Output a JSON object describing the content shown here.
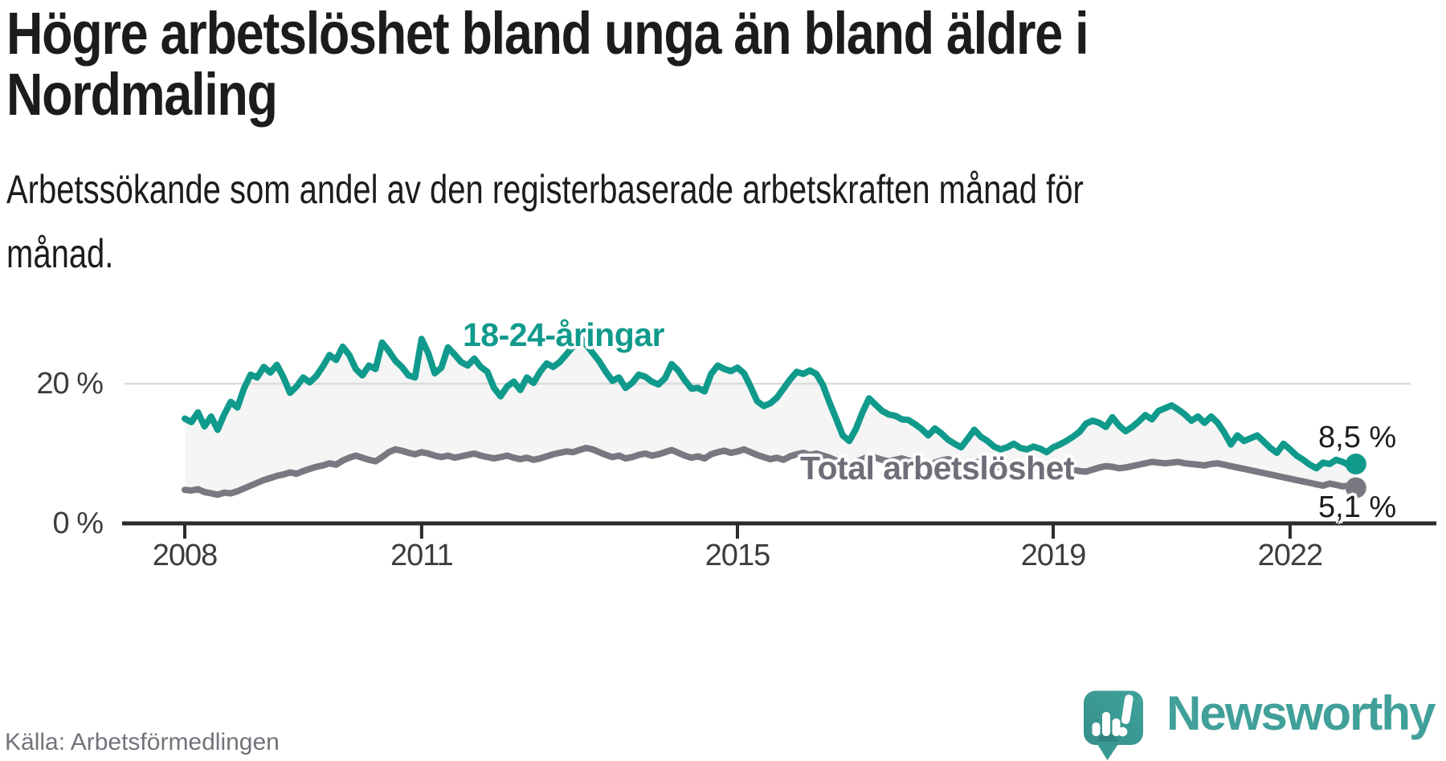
{
  "header": {
    "title_lines": [
      "Högre arbetslöshet bland unga än bland äldre i",
      "Nordmaling"
    ],
    "subtitle_lines": [
      "Arbetssökande som andel av den registerbaserade arbetskraften månad för",
      "månad."
    ]
  },
  "chart": {
    "y_axis": {
      "ticks": [
        {
          "label": "20 %",
          "value": 20
        },
        {
          "label": "0 %",
          "value": 0
        }
      ]
    },
    "x_axis": {
      "ticks": [
        {
          "label": "2008",
          "year": 2008
        },
        {
          "label": "2011",
          "year": 2011
        },
        {
          "label": "2015",
          "year": 2015
        },
        {
          "label": "2019",
          "year": 2019
        },
        {
          "label": "2022",
          "year": 2022
        }
      ]
    },
    "series_labels": {
      "young": "18-24-åringar",
      "total": "Total arbetslöshet"
    },
    "end_labels": {
      "young": "8,5 %",
      "total": "5,1 %"
    },
    "colors": {
      "young": "#109a8c",
      "total": "#787880",
      "area": "#f5f5f5",
      "grid": "#dcdcdc",
      "axis": "#2b2b2b"
    }
  },
  "chart_data": {
    "type": "line",
    "title": "Högre arbetslöshet bland unga än bland äldre i Nordmaling",
    "subtitle": "Arbetssökande som andel av den registerbaserade arbetskraften månad för månad.",
    "unit": "%",
    "frequency": "monthly",
    "x_start": "2008-01",
    "x_end": "2022-11",
    "ylim": [
      0,
      28
    ],
    "yticks": [
      0,
      20
    ],
    "xticks": [
      2008,
      2011,
      2015,
      2019,
      2022
    ],
    "grid": "horizontal-20-only",
    "legend": "inline-labels",
    "area_fill_between_series": true,
    "series": [
      {
        "name": "18-24-åringar",
        "color": "#109a8c",
        "end_label": "8,5 %",
        "last_value": 8.5,
        "values": [
          15.0,
          14.5,
          15.9,
          13.9,
          15.3,
          13.4,
          15.6,
          17.4,
          16.6,
          19.3,
          21.3,
          20.9,
          22.4,
          21.6,
          22.7,
          20.9,
          18.7,
          19.6,
          20.9,
          20.2,
          21.1,
          22.5,
          24.1,
          23.4,
          25.3,
          24.1,
          22.1,
          21.2,
          22.6,
          22.1,
          25.9,
          24.7,
          23.3,
          22.4,
          21.2,
          20.9,
          26.4,
          24.4,
          21.5,
          22.3,
          25.2,
          24.2,
          23.1,
          22.6,
          23.6,
          22.4,
          21.7,
          19.4,
          18.2,
          19.6,
          20.3,
          19.1,
          20.9,
          20.1,
          21.7,
          22.9,
          22.4,
          23.1,
          24.2,
          25.3,
          26.8,
          25.6,
          24.4,
          23.2,
          21.7,
          20.4,
          20.9,
          19.4,
          20.1,
          21.3,
          21.0,
          20.3,
          19.9,
          20.8,
          22.8,
          21.9,
          20.5,
          19.3,
          19.4,
          18.9,
          21.4,
          22.6,
          22.1,
          21.8,
          22.3,
          21.5,
          19.6,
          17.5,
          16.8,
          17.2,
          18.0,
          19.3,
          20.6,
          21.7,
          21.4,
          21.9,
          21.4,
          19.8,
          17.3,
          15.0,
          12.6,
          11.8,
          13.5,
          15.9,
          17.9,
          17.0,
          16.1,
          15.6,
          15.4,
          14.9,
          14.8,
          14.2,
          13.5,
          12.6,
          13.6,
          12.9,
          12.0,
          11.4,
          10.9,
          12.1,
          13.4,
          12.4,
          11.8,
          11.0,
          10.6,
          10.9,
          11.4,
          10.8,
          10.6,
          11.0,
          10.7,
          10.2,
          10.9,
          11.3,
          11.8,
          12.4,
          13.1,
          14.3,
          14.7,
          14.4,
          13.8,
          15.2,
          14.0,
          13.2,
          13.8,
          14.6,
          15.5,
          14.9,
          16.1,
          16.5,
          16.9,
          16.3,
          15.6,
          14.7,
          15.3,
          14.4,
          15.3,
          14.4,
          13.0,
          11.3,
          12.6,
          11.8,
          12.2,
          12.6,
          11.7,
          10.8,
          10.1,
          11.4,
          10.6,
          9.7,
          9.1,
          8.4,
          7.9,
          8.7,
          8.5,
          9.1,
          8.8,
          8.3,
          8.5
        ]
      },
      {
        "name": "Total arbetslöshet",
        "color": "#787880",
        "end_label": "5,1 %",
        "last_value": 5.1,
        "values": [
          4.8,
          4.7,
          4.9,
          4.5,
          4.3,
          4.1,
          4.4,
          4.3,
          4.6,
          5.0,
          5.4,
          5.8,
          6.2,
          6.5,
          6.8,
          7.0,
          7.3,
          7.1,
          7.5,
          7.8,
          8.1,
          8.3,
          8.6,
          8.4,
          9.0,
          9.4,
          9.7,
          9.4,
          9.1,
          8.9,
          9.5,
          10.2,
          10.6,
          10.4,
          10.1,
          9.9,
          10.2,
          10.0,
          9.7,
          9.5,
          9.7,
          9.4,
          9.6,
          9.8,
          10.0,
          9.7,
          9.5,
          9.3,
          9.5,
          9.7,
          9.4,
          9.2,
          9.4,
          9.1,
          9.3,
          9.6,
          9.9,
          10.1,
          10.3,
          10.2,
          10.5,
          10.8,
          10.6,
          10.2,
          9.8,
          9.5,
          9.7,
          9.3,
          9.5,
          9.8,
          10.0,
          9.7,
          9.9,
          10.2,
          10.5,
          10.1,
          9.7,
          9.4,
          9.6,
          9.3,
          9.9,
          10.2,
          10.4,
          10.1,
          10.3,
          10.6,
          10.2,
          9.8,
          9.5,
          9.2,
          9.4,
          9.1,
          9.6,
          9.9,
          10.1,
          9.8,
          10.0,
          9.7,
          9.4,
          9.0,
          8.7,
          8.4,
          8.8,
          9.2,
          9.6,
          9.4,
          9.1,
          8.9,
          9.1,
          9.3,
          9.0,
          8.8,
          8.6,
          8.3,
          8.7,
          9.0,
          9.2,
          8.9,
          8.7,
          8.5,
          8.7,
          8.9,
          8.6,
          8.3,
          8.0,
          7.8,
          8.1,
          8.4,
          8.2,
          8.0,
          7.8,
          7.7,
          7.9,
          8.1,
          7.9,
          7.7,
          7.5,
          7.4,
          7.7,
          8.0,
          8.2,
          8.1,
          7.9,
          8.0,
          8.2,
          8.4,
          8.6,
          8.8,
          8.7,
          8.6,
          8.7,
          8.8,
          8.6,
          8.5,
          8.4,
          8.3,
          8.5,
          8.6,
          8.4,
          8.2,
          8.0,
          7.8,
          7.6,
          7.4,
          7.2,
          7.0,
          6.8,
          6.6,
          6.4,
          6.2,
          6.0,
          5.8,
          5.6,
          5.4,
          5.7,
          5.5,
          5.3,
          5.4,
          5.1
        ]
      }
    ]
  },
  "footer": {
    "source": "Källa: Arbetsförmedlingen",
    "brand": "Newsworthy",
    "brand_color": "#41a09a"
  }
}
